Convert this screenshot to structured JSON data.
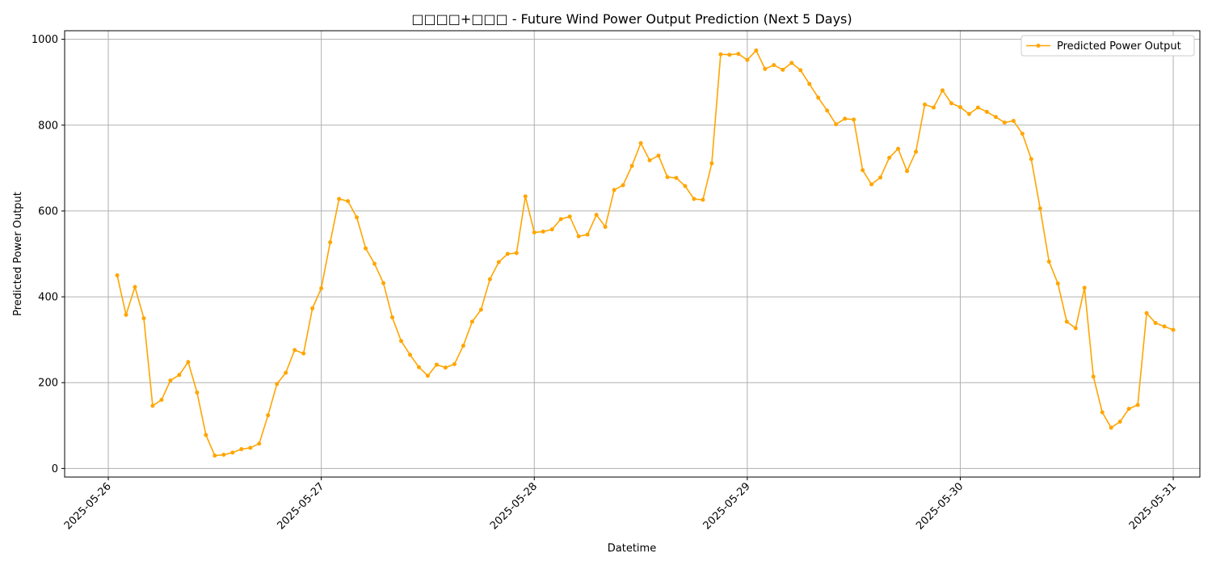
{
  "chart_data": {
    "type": "line",
    "title": "□□□□+□□□ - Future Wind Power Output Prediction (Next 5 Days)",
    "xlabel": "Datetime",
    "ylabel": "Predicted Power Output",
    "x_ticks": [
      "2025-05-26",
      "2025-05-27",
      "2025-05-28",
      "2025-05-29",
      "2025-05-30",
      "2025-05-31"
    ],
    "y_ticks": [
      0,
      200,
      400,
      600,
      800,
      1000
    ],
    "xlim": [
      -0.205,
      5.125
    ],
    "ylim": [
      -20,
      1020
    ],
    "grid": true,
    "legend_position": "top-right",
    "series": [
      {
        "name": "Predicted Power Output",
        "color": "#FFA500",
        "x_days_from_start": [
          0.0417,
          0.0833,
          0.125,
          0.1667,
          0.2083,
          0.25,
          0.2917,
          0.3333,
          0.375,
          0.4167,
          0.4583,
          0.5,
          0.5417,
          0.5833,
          0.625,
          0.6667,
          0.7083,
          0.75,
          0.7917,
          0.8333,
          0.875,
          0.9167,
          0.9583,
          1.0,
          1.0417,
          1.0833,
          1.125,
          1.1667,
          1.2083,
          1.25,
          1.2917,
          1.3333,
          1.375,
          1.4167,
          1.4583,
          1.5,
          1.5417,
          1.5833,
          1.625,
          1.6667,
          1.7083,
          1.75,
          1.7917,
          1.8333,
          1.875,
          1.9167,
          1.9583,
          2.0,
          2.0417,
          2.0833,
          2.125,
          2.1667,
          2.2083,
          2.25,
          2.2917,
          2.3333,
          2.375,
          2.4167,
          2.4583,
          2.5,
          2.5417,
          2.5833,
          2.625,
          2.6667,
          2.7083,
          2.75,
          2.7917,
          2.8333,
          2.875,
          2.9167,
          2.9583,
          3.0,
          3.0417,
          3.0833,
          3.125,
          3.1667,
          3.2083,
          3.25,
          3.2917,
          3.3333,
          3.375,
          3.4167,
          3.4583,
          3.5,
          3.5417,
          3.5833,
          3.625,
          3.6667,
          3.7083,
          3.75,
          3.7917,
          3.8333,
          3.875,
          3.9167,
          3.9583,
          4.0,
          4.0417,
          4.0833,
          4.125,
          4.1667,
          4.2083,
          4.25,
          4.2917,
          4.3333,
          4.375,
          4.4167,
          4.4583,
          4.5,
          4.5417,
          4.5833,
          4.625,
          4.6667,
          4.7083,
          4.75,
          4.7917,
          4.8333,
          4.875,
          4.9167,
          4.9583,
          5.0
        ],
        "values": [
          450,
          358,
          423,
          350,
          146,
          160,
          205,
          218,
          248,
          177,
          78,
          30,
          32,
          37,
          45,
          48,
          58,
          124,
          197,
          223,
          276,
          268,
          373,
          420,
          527,
          628,
          623,
          585,
          513,
          477,
          432,
          352,
          297,
          265,
          236,
          216,
          242,
          235,
          243,
          286,
          342,
          370,
          441,
          481,
          500,
          502,
          634,
          550,
          552,
          557,
          581,
          587,
          541,
          545,
          591,
          563,
          649,
          660,
          705,
          758,
          718,
          729,
          679,
          677,
          658,
          628,
          626,
          711,
          965,
          964,
          966,
          952,
          974,
          931,
          940,
          929,
          945,
          928,
          896,
          864,
          834,
          802,
          815,
          813,
          695,
          662,
          678,
          724,
          745,
          693,
          738,
          848,
          841,
          881,
          851,
          842,
          826,
          841,
          831,
          819,
          806,
          810,
          780,
          721,
          606,
          482,
          431,
          342,
          327,
          421,
          214,
          131,
          95,
          109,
          139,
          148,
          362,
          339,
          331,
          323
        ]
      }
    ]
  }
}
